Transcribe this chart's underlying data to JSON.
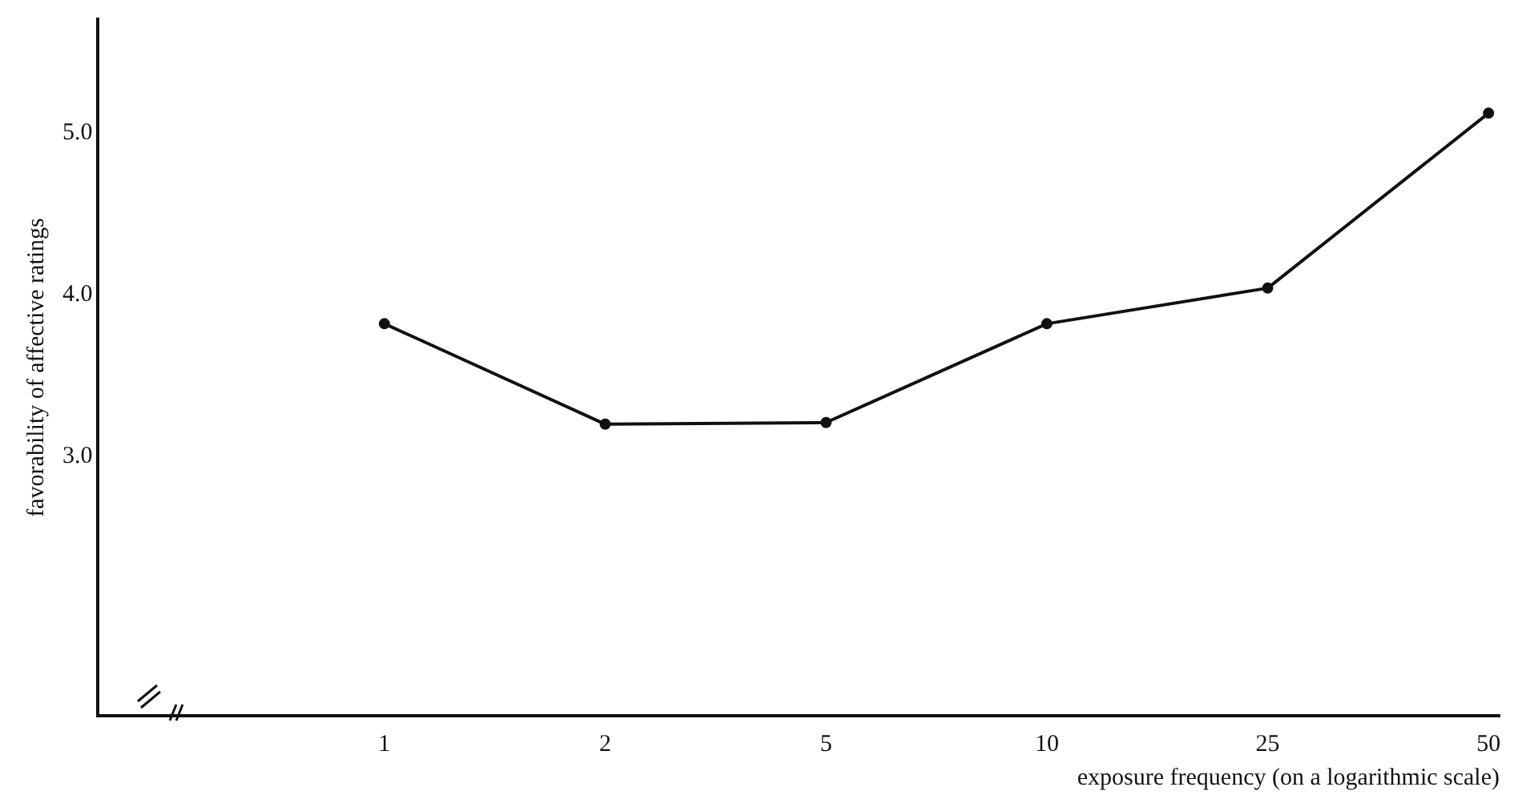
{
  "chart_data": {
    "type": "line",
    "xlabel": "exposure frequency (on a logarithmic scale)",
    "ylabel": "favorability of affective ratings",
    "categories": [
      "1",
      "2",
      "5",
      "10",
      "25",
      "50"
    ],
    "series": [
      {
        "color": "#111111",
        "values": [
          3.82,
          3.2,
          3.21,
          3.82,
          4.04,
          5.12
        ]
      }
    ],
    "ylim": [
      1.4,
      5.7
    ],
    "yticks": [
      {
        "value": 3,
        "label": "3.0"
      },
      {
        "value": 4,
        "label": "4.0"
      },
      {
        "value": 5,
        "label": "5.0"
      }
    ],
    "grid": false,
    "legend": false,
    "marker": "circle",
    "line_style": "solid"
  }
}
